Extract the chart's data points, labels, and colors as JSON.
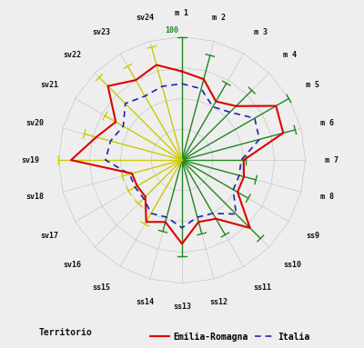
{
  "categories": [
    "m 1",
    "m 2",
    "m 3",
    "m 4",
    "m 5",
    "m 6",
    "m 7",
    "m 8",
    "ss9",
    "ss10",
    "ss11",
    "ss12",
    "ss13",
    "ss14",
    "ss15",
    "sv16",
    "sv17",
    "sv18",
    "sv19",
    "sv20",
    "sv21",
    "sv22",
    "sv23",
    "sv24"
  ],
  "emilia_romagna": [
    72,
    68,
    55,
    62,
    88,
    85,
    50,
    52,
    52,
    78,
    55,
    52,
    68,
    52,
    58,
    42,
    42,
    42,
    90,
    72,
    62,
    85,
    75,
    80
  ],
  "italia": [
    62,
    60,
    50,
    55,
    68,
    65,
    48,
    48,
    48,
    62,
    50,
    48,
    55,
    48,
    50,
    44,
    44,
    44,
    62,
    60,
    55,
    65,
    60,
    62
  ],
  "ref_green": [
    100,
    88,
    72,
    80,
    100,
    95,
    52,
    62,
    62,
    90,
    70,
    62,
    78,
    60,
    0,
    0,
    0,
    0,
    0,
    0,
    0,
    0,
    0,
    0
  ],
  "ref_yellow": [
    0,
    0,
    0,
    0,
    0,
    0,
    0,
    0,
    0,
    0,
    0,
    0,
    0,
    0,
    60,
    50,
    50,
    50,
    100,
    82,
    72,
    95,
    88,
    95
  ],
  "emilia_color": "#dd0000",
  "italia_color": "#2222aa",
  "green_color": "#228822",
  "yellow_color": "#cccc00",
  "scale_label": "100",
  "scale_value": 100,
  "max_value": 100,
  "background_color": "#eeeeee",
  "legend_territorio": "Territorio",
  "legend_emilia": "Emilia-Romagna",
  "legend_italia": "Italia"
}
